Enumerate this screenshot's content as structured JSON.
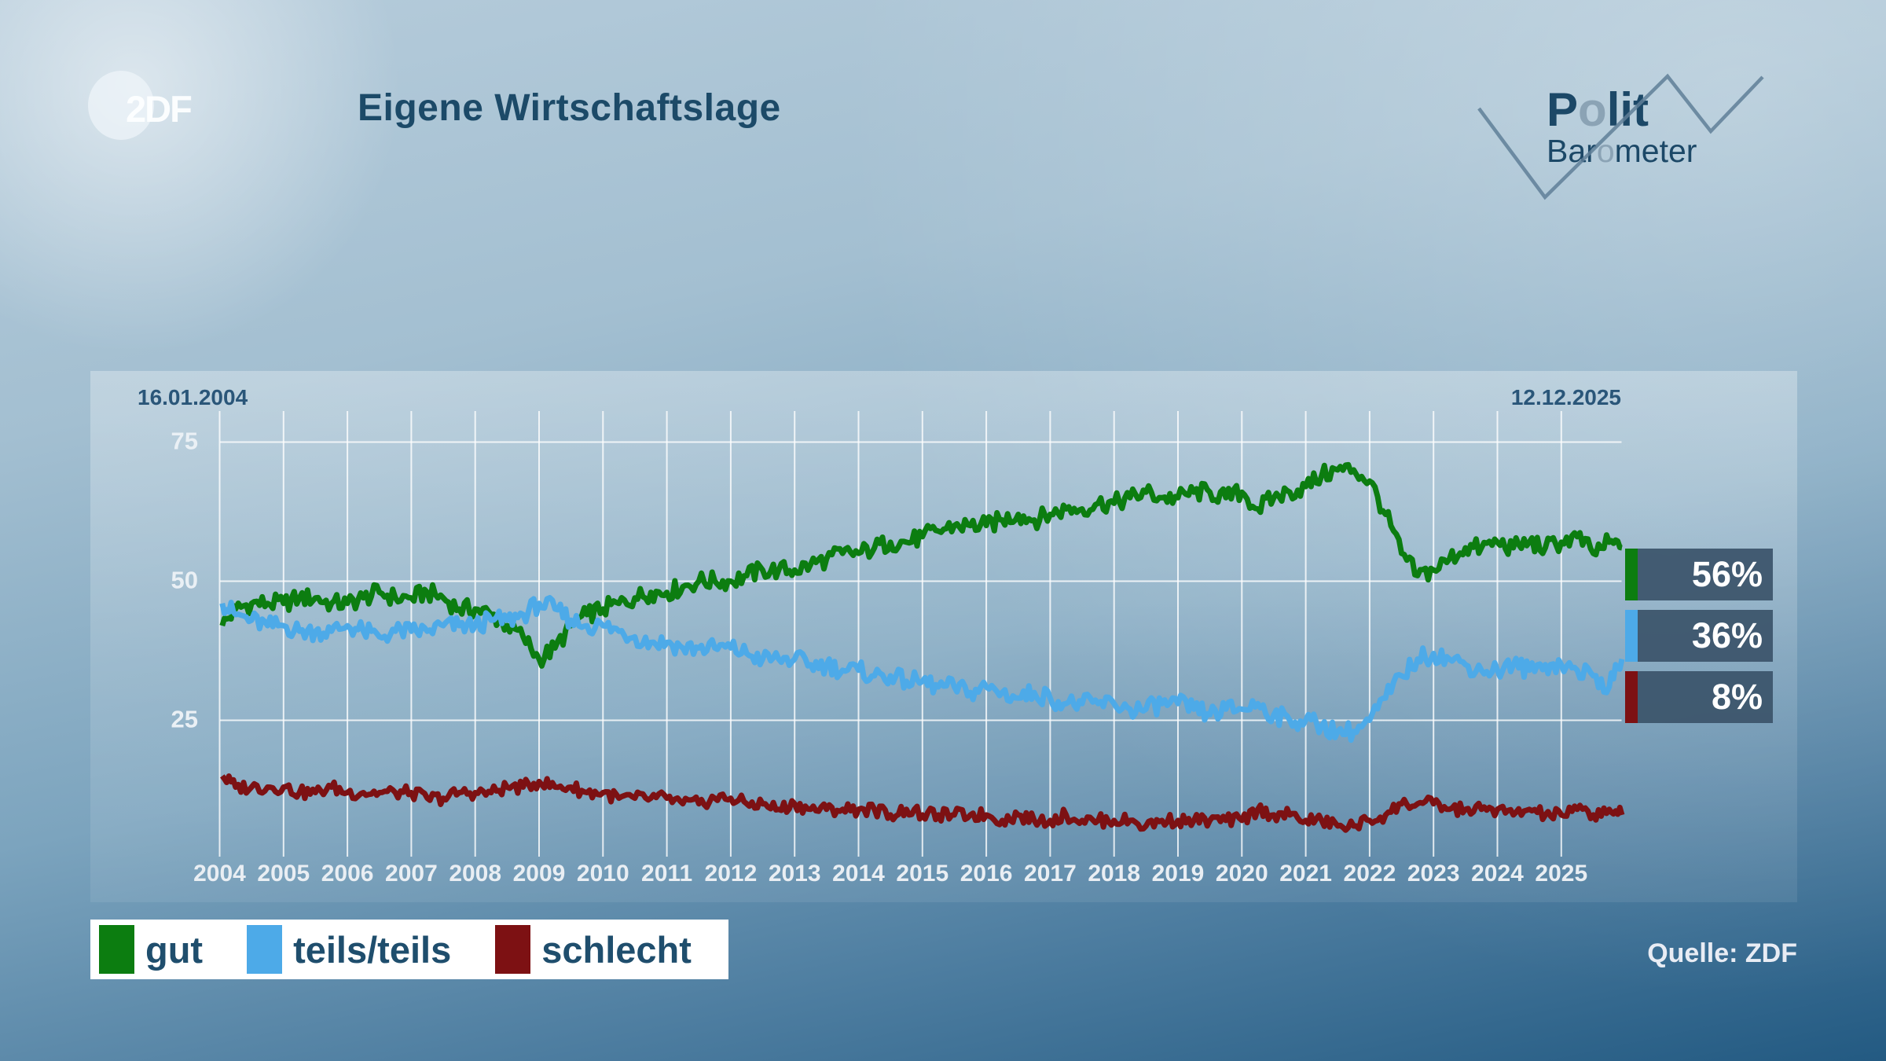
{
  "header": {
    "title": "Eigene Wirtschaftslage",
    "zdf_logo": "2DF",
    "brand": {
      "polit_pre": "P",
      "polit_o": "o",
      "polit_post": "lit",
      "baro_pre": "Bar",
      "baro_o": "o",
      "baro_post": "meter"
    }
  },
  "source_label": "Quelle: ZDF",
  "legend": {
    "items": [
      {
        "label": "gut",
        "color": "#0c7d10"
      },
      {
        "label": "teils/teils",
        "color": "#4daae8"
      },
      {
        "label": "schlecht",
        "color": "#7d1113"
      }
    ]
  },
  "chart_data": {
    "type": "line",
    "title": "Eigene Wirtschaftslage",
    "x_start_label": "16.01.2004",
    "x_end_label": "12.12.2025",
    "x_unit": "year",
    "ylim": [
      0,
      80
    ],
    "y_ticks": [
      75,
      50,
      25
    ],
    "x_year_ticks": [
      2004,
      2005,
      2006,
      2007,
      2008,
      2009,
      2010,
      2011,
      2012,
      2013,
      2014,
      2015,
      2016,
      2017,
      2018,
      2019,
      2020,
      2021,
      2022,
      2023,
      2024,
      2025
    ],
    "grid": true,
    "legend_position": "bottom-left",
    "x": [
      2004.04,
      2004.25,
      2004.5,
      2004.75,
      2005,
      2005.25,
      2005.5,
      2005.75,
      2006,
      2006.25,
      2006.5,
      2006.75,
      2007,
      2007.25,
      2007.5,
      2007.75,
      2008,
      2008.25,
      2008.5,
      2008.75,
      2009,
      2009.25,
      2009.5,
      2009.75,
      2010,
      2010.25,
      2010.5,
      2010.75,
      2011,
      2011.25,
      2011.5,
      2011.75,
      2012,
      2012.25,
      2012.5,
      2012.75,
      2013,
      2013.25,
      2013.5,
      2013.75,
      2014,
      2014.25,
      2014.5,
      2014.75,
      2015,
      2015.25,
      2015.5,
      2015.75,
      2016,
      2016.25,
      2016.5,
      2016.75,
      2017,
      2017.25,
      2017.5,
      2017.75,
      2018,
      2018.25,
      2018.5,
      2018.75,
      2019,
      2019.25,
      2019.5,
      2019.75,
      2020,
      2020.25,
      2020.5,
      2020.75,
      2021,
      2021.25,
      2021.5,
      2021.75,
      2022,
      2022.25,
      2022.5,
      2022.75,
      2023,
      2023.25,
      2023.5,
      2023.75,
      2024,
      2024.25,
      2024.5,
      2024.75,
      2025,
      2025.25,
      2025.5,
      2025.75,
      2025.95
    ],
    "series": [
      {
        "name": "gut",
        "color": "#0c7d10",
        "end_label": "56%",
        "end_value": 56,
        "noise": 1.7,
        "values": [
          42,
          45,
          46,
          46,
          46,
          47,
          47,
          46,
          46,
          47,
          48,
          47,
          47,
          48,
          47,
          45,
          45,
          44,
          42,
          40,
          36,
          38,
          42,
          44,
          45,
          46,
          47,
          48,
          48,
          49,
          50,
          50,
          50,
          51,
          52,
          52,
          52,
          53,
          54,
          55,
          55,
          56,
          57,
          57,
          58,
          59,
          60,
          60,
          60,
          61,
          62,
          61,
          62,
          63,
          63,
          64,
          64,
          65,
          66,
          65,
          65,
          66,
          66,
          65,
          66,
          63,
          65,
          66,
          67,
          69,
          70,
          70,
          68,
          62,
          55,
          51,
          52,
          54,
          56,
          56,
          57,
          56,
          57,
          56,
          57,
          58,
          55,
          57,
          56
        ]
      },
      {
        "name": "teils/teils",
        "color": "#4daae8",
        "end_label": "36%",
        "end_value": 36,
        "noise": 1.7,
        "values": [
          46,
          44,
          43,
          42,
          42,
          41,
          41,
          41,
          42,
          41,
          40,
          41,
          41,
          41,
          42,
          42,
          42,
          43,
          43,
          44,
          46,
          45,
          43,
          42,
          42,
          41,
          40,
          39,
          39,
          38,
          38,
          38,
          38,
          37,
          36,
          36,
          36,
          35,
          35,
          34,
          34,
          33,
          33,
          32,
          32,
          31,
          31,
          30,
          31,
          30,
          29,
          30,
          29,
          28,
          28,
          28,
          28,
          27,
          27,
          28,
          28,
          27,
          26,
          27,
          27,
          28,
          26,
          25,
          25,
          24,
          23,
          23,
          25,
          29,
          33,
          36,
          37,
          36,
          35,
          34,
          34,
          35,
          34,
          35,
          35,
          34,
          33,
          31,
          36
        ]
      },
      {
        "name": "schlecht",
        "color": "#7d1113",
        "end_label": "8%",
        "end_value": 8,
        "noise": 1.2,
        "values": [
          15,
          13,
          13,
          13,
          13,
          12,
          12,
          13,
          12,
          12,
          12,
          12,
          12,
          11,
          11,
          12,
          12,
          12,
          13,
          13,
          14,
          13,
          13,
          12,
          12,
          11,
          11,
          11,
          11,
          10,
          10,
          11,
          11,
          10,
          10,
          9,
          10,
          9,
          9,
          9,
          9,
          9,
          8,
          9,
          8,
          8,
          8,
          8,
          8,
          7,
          8,
          7,
          7,
          8,
          7,
          7,
          7,
          7,
          6,
          7,
          7,
          7,
          7,
          7,
          7,
          9,
          8,
          8,
          7,
          7,
          6,
          6,
          7,
          8,
          10,
          10,
          10,
          9,
          9,
          9,
          9,
          8,
          9,
          8,
          8,
          9,
          8,
          9,
          8
        ]
      }
    ]
  }
}
